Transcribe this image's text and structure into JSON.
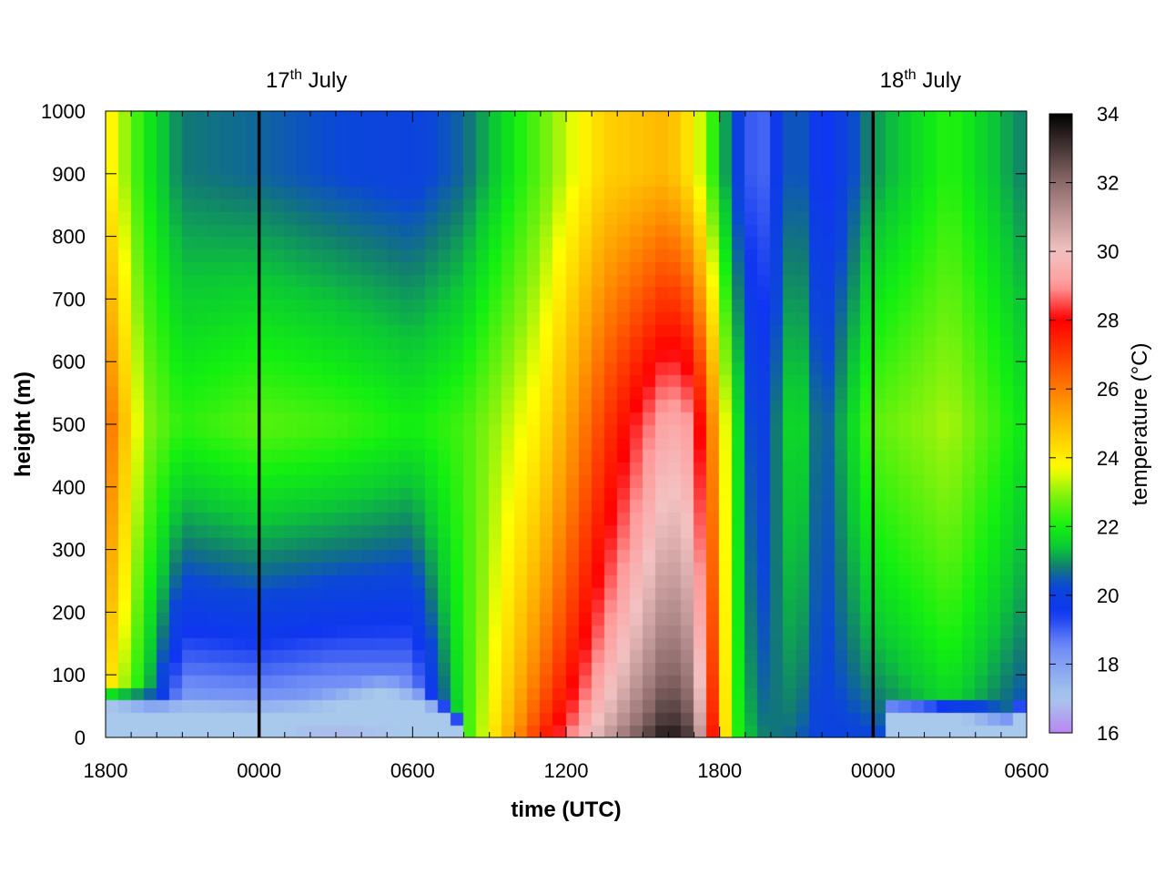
{
  "chart_data": {
    "type": "heatmap",
    "xlabel": "time (UTC)",
    "ylabel": "height (m)",
    "colorbar_label": "temperature (°C)",
    "x_range_hours": [
      18,
      54
    ],
    "x_ticks": [
      "1800",
      "0000",
      "0600",
      "1200",
      "1800",
      "0000",
      "0600"
    ],
    "x_tick_hours": [
      18,
      24,
      30,
      36,
      42,
      48,
      54
    ],
    "y_range": [
      0,
      1000
    ],
    "y_ticks": [
      0,
      100,
      200,
      300,
      400,
      500,
      600,
      700,
      800,
      900,
      1000
    ],
    "color_range": [
      16,
      34
    ],
    "color_ticks": [
      16,
      18,
      20,
      22,
      24,
      26,
      28,
      30,
      32,
      34
    ],
    "colormap": [
      {
        "value": 16,
        "color": "#b886f2"
      },
      {
        "value": 17,
        "color": "#a8c8ec"
      },
      {
        "value": 18.5,
        "color": "#6f8cf6"
      },
      {
        "value": 19.5,
        "color": "#0f36f0"
      },
      {
        "value": 20.3,
        "color": "#0b47d8"
      },
      {
        "value": 20.8,
        "color": "#127a74"
      },
      {
        "value": 21.4,
        "color": "#0bc835"
      },
      {
        "value": 22,
        "color": "#12f010"
      },
      {
        "value": 23,
        "color": "#8cf20c"
      },
      {
        "value": 23.7,
        "color": "#ffff00"
      },
      {
        "value": 24.5,
        "color": "#ffd200"
      },
      {
        "value": 25.5,
        "color": "#ff9a00"
      },
      {
        "value": 27,
        "color": "#ff3c00"
      },
      {
        "value": 28,
        "color": "#ff0000"
      },
      {
        "value": 29,
        "color": "#ff9a9a"
      },
      {
        "value": 30,
        "color": "#f3c2c2"
      },
      {
        "value": 32,
        "color": "#8c6a6a"
      },
      {
        "value": 34,
        "color": "#000000"
      }
    ],
    "day_markers": [
      {
        "label_main": "17",
        "label_sup": "th",
        "label_rest": " July",
        "hour": 24
      },
      {
        "label_main": "18",
        "label_sup": "th",
        "label_rest": " July",
        "hour": 48
      }
    ],
    "grid": false,
    "time_step_hours": 0.5,
    "height_step_m": 20,
    "surface_layer_m": [
      [
        18,
        50
      ],
      [
        19,
        48
      ],
      [
        20,
        42
      ],
      [
        21,
        40
      ],
      [
        22,
        38
      ],
      [
        23,
        36
      ],
      [
        24,
        34
      ],
      [
        25,
        36
      ],
      [
        26,
        40
      ],
      [
        27,
        50
      ],
      [
        28,
        65
      ],
      [
        29,
        72
      ],
      [
        30,
        55
      ],
      [
        31,
        38
      ],
      [
        31.6,
        20
      ],
      [
        32.2,
        0
      ],
      [
        48.5,
        38
      ],
      [
        50,
        36
      ],
      [
        52,
        28
      ],
      [
        53.5,
        18
      ],
      [
        54,
        42
      ]
    ],
    "temperature_timeseries_summary": [
      {
        "hour": 18.0,
        "upper_level": 24.2,
        "mid_level": 26.5,
        "near_surface": 23.5
      },
      {
        "hour": 19.5,
        "upper_level": 22.0,
        "mid_level": 23.0,
        "near_surface": 21.0
      },
      {
        "hour": 21.0,
        "upper_level": 20.8,
        "mid_level": 22.2,
        "near_surface": 16.5
      },
      {
        "hour": 24.0,
        "upper_level": 20.6,
        "mid_level": 22.6,
        "near_surface": 16.5
      },
      {
        "hour": 27.0,
        "upper_level": 20.3,
        "mid_level": 22.4,
        "near_surface": 16.2
      },
      {
        "hour": 30.0,
        "upper_level": 20.1,
        "mid_level": 22.0,
        "near_surface": 16.5
      },
      {
        "hour": 32.0,
        "upper_level": 20.6,
        "mid_level": 22.4,
        "near_surface": 22.0
      },
      {
        "hour": 35.0,
        "upper_level": 22.6,
        "mid_level": 24.0,
        "near_surface": 27.5
      },
      {
        "hour": 37.5,
        "upper_level": 24.5,
        "mid_level": 27.0,
        "near_surface": 31.0
      },
      {
        "hour": 40.0,
        "upper_level": 25.0,
        "mid_level": 29.5,
        "near_surface": 34.0
      },
      {
        "hour": 41.0,
        "upper_level": 24.0,
        "mid_level": 29.0,
        "near_surface": 33.0
      },
      {
        "hour": 42.5,
        "upper_level": 20.5,
        "mid_level": 22.5,
        "near_surface": 22.5
      },
      {
        "hour": 43.5,
        "upper_level": 18.6,
        "mid_level": 19.6,
        "near_surface": 21.0
      },
      {
        "hour": 45.0,
        "upper_level": 20.8,
        "mid_level": 22.0,
        "near_surface": 20.5
      },
      {
        "hour": 46.0,
        "upper_level": 19.3,
        "mid_level": 20.3,
        "near_surface": 20.0
      },
      {
        "hour": 48.0,
        "upper_level": 21.0,
        "mid_level": 22.6,
        "near_surface": 20.0
      },
      {
        "hour": 51.0,
        "upper_level": 22.2,
        "mid_level": 23.2,
        "near_surface": 21.0
      },
      {
        "hour": 54.0,
        "upper_level": 20.8,
        "mid_level": 21.8,
        "near_surface": 19.8
      }
    ]
  }
}
